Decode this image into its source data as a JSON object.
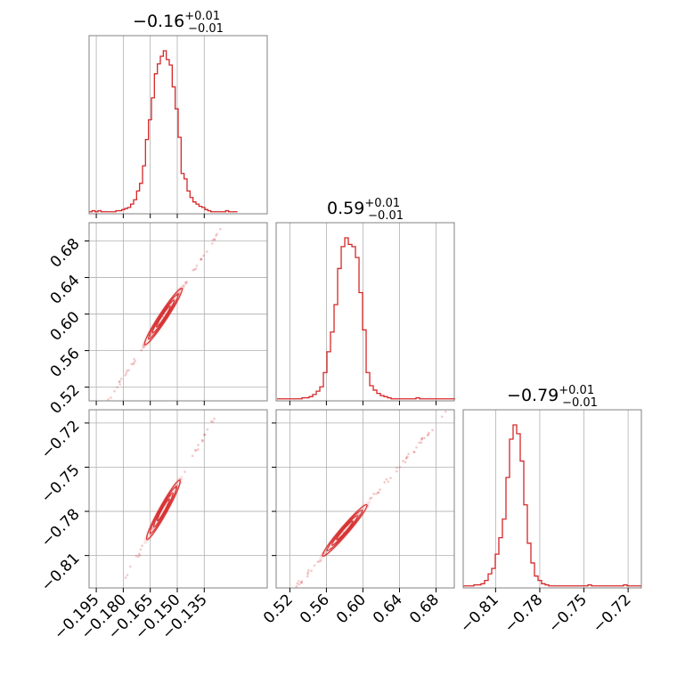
{
  "chart_data": {
    "type": "corner",
    "color": "#d62728",
    "grid": true,
    "parameters": [
      {
        "title": {
          "value": "−0.16",
          "plus": "+0.01",
          "minus": "−0.01"
        },
        "range": [
          -0.199,
          -0.1
        ],
        "ticks": [
          -0.195,
          -0.18,
          -0.165,
          -0.15,
          -0.135
        ],
        "tick_labels": [
          "−0.195",
          "−0.180",
          "−0.165",
          "−0.150",
          "−0.135"
        ],
        "hist": {
          "bin_start": -0.199,
          "bin_width": 0.00165,
          "counts": [
            1,
            2,
            1,
            2,
            1,
            1,
            1,
            1,
            1,
            2,
            2,
            3,
            4,
            5,
            8,
            12,
            20,
            27,
            43,
            67,
            85,
            105,
            127,
            136,
            143,
            148,
            140,
            135,
            115,
            95,
            69,
            36,
            31,
            20,
            14,
            10,
            8,
            6,
            5,
            3,
            2,
            1,
            1,
            1,
            1,
            1,
            2,
            1,
            1,
            1
          ]
        },
        "max_count": 148
      },
      {
        "title": {
          "value": "0.59",
          "plus": "+0.01",
          "minus": "−0.01"
        },
        "range": [
          0.505,
          0.7
        ],
        "ticks": [
          0.52,
          0.56,
          0.6,
          0.64,
          0.68
        ],
        "tick_labels": [
          "0.52",
          "0.56",
          "0.60",
          "0.64",
          "0.68"
        ],
        "hist": {
          "bin_start": 0.506,
          "bin_width": 0.0039,
          "counts": [
            1,
            1,
            1,
            1,
            1,
            1,
            1,
            2,
            2,
            3,
            5,
            8,
            12,
            25,
            44,
            62,
            87,
            120,
            140,
            148,
            142,
            140,
            130,
            98,
            64,
            25,
            13,
            9,
            6,
            4,
            3,
            2,
            1,
            1,
            1,
            1,
            1,
            1,
            1,
            2,
            1,
            1,
            1,
            1,
            1,
            1,
            1,
            1,
            1,
            1
          ]
        },
        "max_count": 148
      },
      {
        "title": {
          "value": "−0.79",
          "plus": "+0.01",
          "minus": "−0.01"
        },
        "range": [
          -0.832,
          -0.711
        ],
        "ticks": [
          -0.81,
          -0.78,
          -0.75,
          -0.72
        ],
        "tick_labels": [
          "−0.81",
          "−0.78",
          "−0.75",
          "−0.72"
        ],
        "hist": {
          "bin_start": -0.832,
          "bin_width": 0.00242,
          "counts": [
            1,
            1,
            1,
            2,
            2,
            3,
            6,
            12,
            17,
            30,
            45,
            62,
            100,
            135,
            148,
            140,
            115,
            75,
            40,
            22,
            10,
            6,
            3,
            2,
            1,
            1,
            1,
            1,
            1,
            1,
            1,
            1,
            1,
            1,
            1,
            2,
            1,
            1,
            1,
            1,
            1,
            1,
            1,
            1,
            1,
            2,
            1,
            1,
            1,
            1
          ]
        },
        "max_count": 148
      }
    ],
    "pairs": [
      {
        "x_param": 0,
        "y_param": 1,
        "relation": {
          "slope": 3.0,
          "intercept": 1.0705,
          "curvature": 0
        }
      },
      {
        "x_param": 0,
        "y_param": 2,
        "relation": {
          "slope": 2.2,
          "intercept": -0.432,
          "curvature": 0
        }
      },
      {
        "x_param": 1,
        "y_param": 2,
        "relation": {
          "slope": 0.72,
          "intercept": -1.2106,
          "curvature": 0
        }
      }
    ]
  }
}
